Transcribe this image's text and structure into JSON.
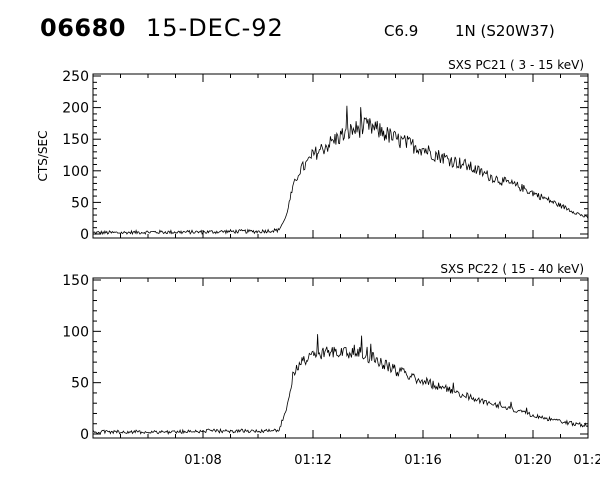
{
  "header": {
    "event_number": "06680",
    "date": "15-DEC-92",
    "goes_class": "C6.9",
    "optical": "1N (S20W37)"
  },
  "chart_data": [
    {
      "type": "line",
      "title": "SXS PC21  (  3 - 15 keV)",
      "ylabel": "CTS/SEC",
      "xlabel": "",
      "xlim": [
        "01:04:00",
        "01:22:00"
      ],
      "ylim": [
        0,
        250
      ],
      "yticks": [
        0,
        50,
        100,
        150,
        200,
        250
      ],
      "xticks": [
        "01:08",
        "01:12",
        "01:16",
        "01:20",
        "01:2"
      ],
      "xtick_labels_shown": false,
      "series": [
        {
          "x": [
            "01:04:00",
            "01:05:00",
            "01:06:00",
            "01:07:00",
            "01:08:00",
            "01:09:00",
            "01:10:00",
            "01:10:45",
            "01:11:00",
            "01:11:15",
            "01:11:30",
            "01:11:45",
            "01:12:00",
            "01:12:30",
            "01:13:00",
            "01:13:30",
            "01:14:00",
            "01:14:30",
            "01:15:00",
            "01:15:30",
            "01:16:00",
            "01:16:30",
            "01:17:00",
            "01:17:30",
            "01:18:00",
            "01:18:30",
            "01:19:00",
            "01:19:30",
            "01:20:00",
            "01:20:30",
            "01:21:00",
            "01:21:30",
            "01:22:00"
          ],
          "values": [
            2,
            2,
            3,
            3,
            3,
            4,
            4,
            6,
            25,
            70,
            100,
            110,
            125,
            140,
            155,
            165,
            170,
            162,
            150,
            142,
            135,
            125,
            117,
            110,
            100,
            90,
            82,
            75,
            65,
            55,
            45,
            35,
            25
          ]
        }
      ]
    },
    {
      "type": "line",
      "title": "SXS PC22  ( 15 - 40 keV)",
      "ylabel": "",
      "xlabel": "",
      "xlim": [
        "01:04:00",
        "01:22:00"
      ],
      "ylim": [
        0,
        150
      ],
      "yticks": [
        0,
        50,
        100,
        150
      ],
      "xticks": [
        "01:08",
        "01:12",
        "01:16",
        "01:20",
        "01:2"
      ],
      "xtick_labels_shown": true,
      "series": [
        {
          "x": [
            "01:04:00",
            "01:05:00",
            "01:06:00",
            "01:07:00",
            "01:08:00",
            "01:09:00",
            "01:10:00",
            "01:10:45",
            "01:11:00",
            "01:11:15",
            "01:11:30",
            "01:11:45",
            "01:12:00",
            "01:12:30",
            "01:13:00",
            "01:13:30",
            "01:14:00",
            "01:14:30",
            "01:15:00",
            "01:15:30",
            "01:16:00",
            "01:16:30",
            "01:17:00",
            "01:17:30",
            "01:18:00",
            "01:18:30",
            "01:19:00",
            "01:19:30",
            "01:20:00",
            "01:20:30",
            "01:21:00",
            "01:21:30",
            "01:22:00"
          ],
          "values": [
            2,
            2,
            2,
            2,
            3,
            3,
            3,
            4,
            20,
            55,
            70,
            72,
            78,
            78,
            82,
            80,
            75,
            70,
            62,
            57,
            52,
            47,
            42,
            38,
            33,
            30,
            26,
            22,
            18,
            15,
            12,
            10,
            8
          ]
        }
      ]
    }
  ]
}
